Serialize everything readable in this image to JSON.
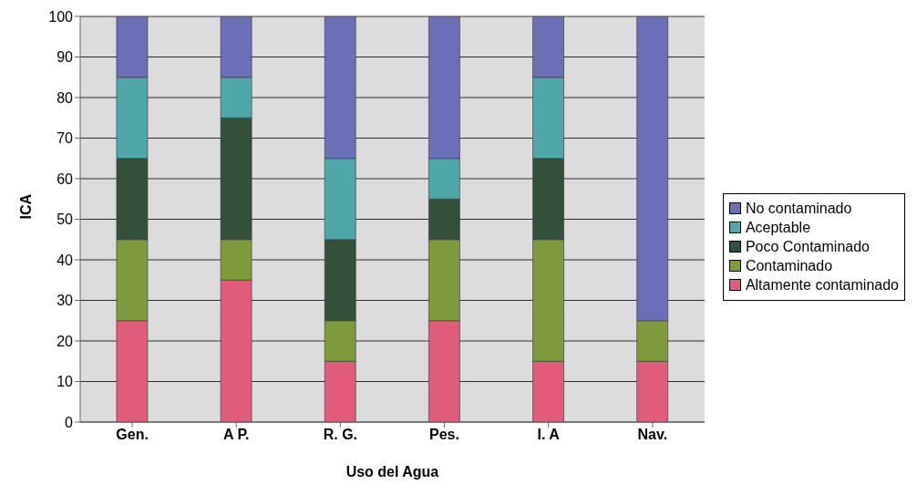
{
  "chart_data": {
    "type": "bar",
    "stacked": true,
    "xlabel": "Uso del Agua",
    "ylabel": "ICA",
    "categories": [
      "Gen.",
      "A P.",
      "R. G.",
      "Pes.",
      "I. A",
      "Nav."
    ],
    "series": [
      {
        "name": "Altamente contaminado",
        "color": "#e05c7a",
        "values": [
          25,
          35,
          15,
          25,
          15,
          15
        ]
      },
      {
        "name": "Contaminado",
        "color": "#7f9a3c",
        "values": [
          20,
          10,
          10,
          20,
          30,
          10
        ]
      },
      {
        "name": "Poco Contaminado",
        "color": "#33503a",
        "values": [
          20,
          30,
          20,
          10,
          20,
          0
        ]
      },
      {
        "name": "Aceptable",
        "color": "#4fa7aa",
        "values": [
          20,
          10,
          20,
          10,
          20,
          0
        ]
      },
      {
        "name": "No contaminado",
        "color": "#6b6fb5",
        "values": [
          15,
          15,
          35,
          35,
          15,
          75
        ]
      }
    ],
    "ylim": [
      0,
      100
    ],
    "yticks": [
      0,
      10,
      20,
      30,
      40,
      50,
      60,
      70,
      80,
      90,
      100
    ],
    "grid": "y",
    "legend": "right"
  }
}
